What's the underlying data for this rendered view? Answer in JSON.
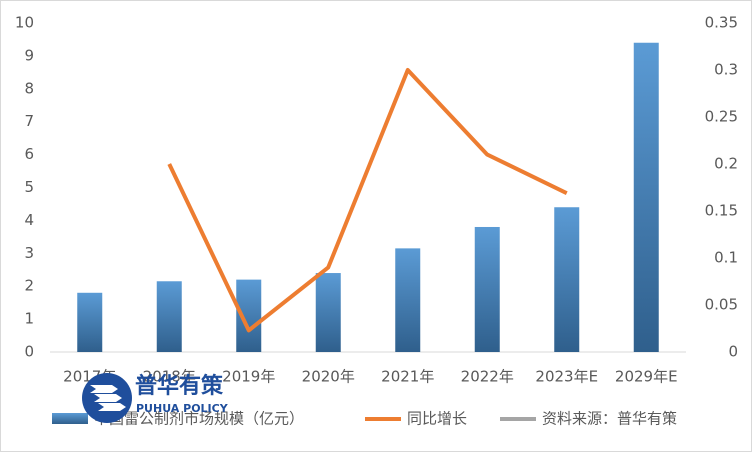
{
  "chart_data": {
    "type": "bar-line",
    "categories": [
      "2017年",
      "2018年",
      "2019年",
      "2020年",
      "2021年",
      "2022年",
      "2023年E",
      "2029年E"
    ],
    "series": [
      {
        "name": "中国雷公制剂市场规模（亿元）",
        "type": "bar",
        "color": "#4a8bc8",
        "values": [
          1.8,
          2.15,
          2.2,
          2.4,
          3.15,
          3.8,
          4.4,
          9.4
        ]
      },
      {
        "name": "同比增长",
        "type": "line",
        "axis": "y2",
        "color": "#ed7d31",
        "values": [
          null,
          0.2,
          0.023,
          0.09,
          0.3,
          0.21,
          0.169,
          null
        ]
      },
      {
        "name": "资料来源：普华有策",
        "type": "line",
        "color": "#a5a5a5",
        "values": [
          null,
          null,
          null,
          null,
          null,
          null,
          null,
          null
        ]
      }
    ],
    "ylim": [
      0,
      10
    ],
    "yticks": [
      0,
      1,
      2,
      3,
      4,
      5,
      6,
      7,
      8,
      9,
      10
    ],
    "y2lim": [
      0,
      0.35
    ],
    "y2ticks": [
      0,
      0.05,
      0.1,
      0.15,
      0.2,
      0.25,
      0.3,
      0.35
    ],
    "grid": false,
    "legend": "bottom",
    "watermark": {
      "title": "普华有策",
      "subtitle": "PUHUA POLICY"
    }
  }
}
